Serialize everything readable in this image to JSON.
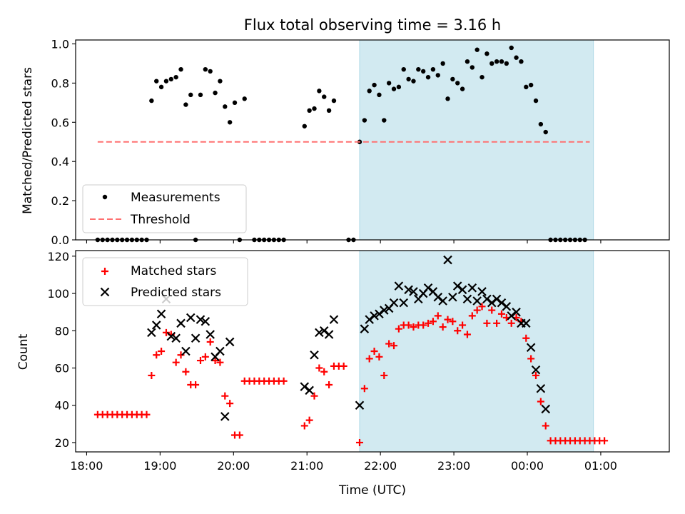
{
  "chart_data": [
    {
      "type": "scatter",
      "title": "Flux total observing time = 3.16 h",
      "xlabel": "",
      "ylabel": "Matched/Predicted stars",
      "xlim": [
        "17:51",
        "01:56"
      ],
      "ylim": [
        0,
        1.02
      ],
      "yticks": [
        "0.0",
        "0.2",
        "0.4",
        "0.6",
        "0.8",
        "1.0"
      ],
      "shaded_interval": [
        "21:43",
        "00:54"
      ],
      "shade_color": "#add8e6",
      "legend": {
        "position": "lower left",
        "entries": [
          "Measurements",
          "Threshold"
        ]
      },
      "series": [
        {
          "name": "Measurements",
          "color": "#000000",
          "marker": "dot",
          "points": [
            [
              "18:09",
              0
            ],
            [
              "18:13",
              0
            ],
            [
              "18:17",
              0
            ],
            [
              "18:21",
              0
            ],
            [
              "18:25",
              0
            ],
            [
              "18:29",
              0
            ],
            [
              "18:33",
              0
            ],
            [
              "18:37",
              0
            ],
            [
              "18:41",
              0
            ],
            [
              "18:45",
              0
            ],
            [
              "18:49",
              0
            ],
            [
              "18:53",
              0.71
            ],
            [
              "18:57",
              0.81
            ],
            [
              "19:01",
              0.78
            ],
            [
              "19:05",
              0.81
            ],
            [
              "19:09",
              0.82
            ],
            [
              "19:13",
              0.83
            ],
            [
              "19:17",
              0.87
            ],
            [
              "19:21",
              0.69
            ],
            [
              "19:25",
              0.74
            ],
            [
              "19:29",
              0
            ],
            [
              "19:33",
              0.74
            ],
            [
              "19:37",
              0.87
            ],
            [
              "19:41",
              0.86
            ],
            [
              "19:45",
              0.75
            ],
            [
              "19:49",
              0.81
            ],
            [
              "19:53",
              0.68
            ],
            [
              "19:57",
              0.6
            ],
            [
              "20:01",
              0.7
            ],
            [
              "20:05",
              0
            ],
            [
              "20:09",
              0.72
            ],
            [
              "20:17",
              0
            ],
            [
              "20:21",
              0
            ],
            [
              "20:25",
              0
            ],
            [
              "20:29",
              0
            ],
            [
              "20:33",
              0
            ],
            [
              "20:37",
              0
            ],
            [
              "20:41",
              0
            ],
            [
              "20:58",
              0.58
            ],
            [
              "21:02",
              0.66
            ],
            [
              "21:06",
              0.67
            ],
            [
              "21:10",
              0.76
            ],
            [
              "21:14",
              0.73
            ],
            [
              "21:18",
              0.66
            ],
            [
              "21:22",
              0.71
            ],
            [
              "21:34",
              0
            ],
            [
              "21:38",
              0
            ],
            [
              "21:43",
              0.5
            ],
            [
              "21:47",
              0.61
            ],
            [
              "21:51",
              0.76
            ],
            [
              "21:55",
              0.79
            ],
            [
              "21:59",
              0.74
            ],
            [
              "22:03",
              0.61
            ],
            [
              "22:07",
              0.8
            ],
            [
              "22:11",
              0.77
            ],
            [
              "22:15",
              0.78
            ],
            [
              "22:19",
              0.87
            ],
            [
              "22:23",
              0.82
            ],
            [
              "22:27",
              0.81
            ],
            [
              "22:31",
              0.87
            ],
            [
              "22:35",
              0.86
            ],
            [
              "22:39",
              0.83
            ],
            [
              "22:43",
              0.87
            ],
            [
              "22:47",
              0.84
            ],
            [
              "22:51",
              0.9
            ],
            [
              "22:55",
              0.72
            ],
            [
              "22:59",
              0.82
            ],
            [
              "23:03",
              0.8
            ],
            [
              "23:07",
              0.77
            ],
            [
              "23:11",
              0.91
            ],
            [
              "23:15",
              0.88
            ],
            [
              "23:19",
              0.97
            ],
            [
              "23:23",
              0.83
            ],
            [
              "23:27",
              0.95
            ],
            [
              "23:31",
              0.9
            ],
            [
              "23:35",
              0.91
            ],
            [
              "23:39",
              0.91
            ],
            [
              "23:43",
              0.9
            ],
            [
              "23:47",
              0.98
            ],
            [
              "23:51",
              0.93
            ],
            [
              "23:55",
              0.91
            ],
            [
              "23:59",
              0.78
            ],
            [
              "00:03",
              0.79
            ],
            [
              "00:07",
              0.71
            ],
            [
              "00:11",
              0.59
            ],
            [
              "00:15",
              0.55
            ],
            [
              "00:19",
              0
            ],
            [
              "00:23",
              0
            ],
            [
              "00:27",
              0
            ],
            [
              "00:31",
              0
            ],
            [
              "00:35",
              0
            ],
            [
              "00:39",
              0
            ],
            [
              "00:43",
              0
            ],
            [
              "00:47",
              0
            ]
          ]
        },
        {
          "name": "Threshold",
          "color": "#ff7070",
          "style": "dashed",
          "points": [
            [
              "18:09",
              0.5
            ],
            [
              "00:51",
              0.5
            ]
          ]
        }
      ]
    },
    {
      "type": "scatter",
      "title": "",
      "xlabel": "Time (UTC)",
      "ylabel": "Count",
      "xlim": [
        "17:51",
        "01:56"
      ],
      "ylim": [
        15,
        123
      ],
      "xticks": [
        "18:00",
        "19:00",
        "20:00",
        "21:00",
        "22:00",
        "23:00",
        "00:00",
        "01:00"
      ],
      "yticks": [
        "20",
        "40",
        "60",
        "80",
        "100",
        "120"
      ],
      "shaded_interval": [
        "21:43",
        "00:54"
      ],
      "shade_color": "#add8e6",
      "legend": {
        "position": "upper left",
        "entries": [
          "Matched stars",
          "Predicted stars"
        ]
      },
      "series": [
        {
          "name": "Matched stars",
          "color": "#ff0000",
          "marker": "plus",
          "points": [
            [
              "18:09",
              35
            ],
            [
              "18:13",
              35
            ],
            [
              "18:17",
              35
            ],
            [
              "18:21",
              35
            ],
            [
              "18:25",
              35
            ],
            [
              "18:29",
              35
            ],
            [
              "18:33",
              35
            ],
            [
              "18:37",
              35
            ],
            [
              "18:41",
              35
            ],
            [
              "18:45",
              35
            ],
            [
              "18:49",
              35
            ],
            [
              "18:53",
              56
            ],
            [
              "18:57",
              67
            ],
            [
              "19:01",
              69
            ],
            [
              "19:05",
              79
            ],
            [
              "19:09",
              78
            ],
            [
              "19:13",
              63
            ],
            [
              "19:17",
              67
            ],
            [
              "19:21",
              58
            ],
            [
              "19:25",
              51
            ],
            [
              "19:29",
              51
            ],
            [
              "19:33",
              64
            ],
            [
              "19:37",
              66
            ],
            [
              "19:41",
              74
            ],
            [
              "19:45",
              64
            ],
            [
              "19:49",
              63
            ],
            [
              "19:53",
              45
            ],
            [
              "19:57",
              41
            ],
            [
              "20:01",
              24
            ],
            [
              "20:05",
              24
            ],
            [
              "20:09",
              53
            ],
            [
              "20:13",
              53
            ],
            [
              "20:17",
              53
            ],
            [
              "20:21",
              53
            ],
            [
              "20:25",
              53
            ],
            [
              "20:29",
              53
            ],
            [
              "20:33",
              53
            ],
            [
              "20:37",
              53
            ],
            [
              "20:41",
              53
            ],
            [
              "20:58",
              29
            ],
            [
              "21:02",
              32
            ],
            [
              "21:06",
              45
            ],
            [
              "21:10",
              60
            ],
            [
              "21:14",
              58
            ],
            [
              "21:18",
              51
            ],
            [
              "21:22",
              61
            ],
            [
              "21:26",
              61
            ],
            [
              "21:30",
              61
            ],
            [
              "21:43",
              20
            ],
            [
              "21:47",
              49
            ],
            [
              "21:51",
              65
            ],
            [
              "21:55",
              69
            ],
            [
              "21:59",
              66
            ],
            [
              "22:03",
              56
            ],
            [
              "22:07",
              73
            ],
            [
              "22:11",
              72
            ],
            [
              "22:15",
              81
            ],
            [
              "22:19",
              83
            ],
            [
              "22:23",
              83
            ],
            [
              "22:27",
              82
            ],
            [
              "22:31",
              83
            ],
            [
              "22:35",
              83
            ],
            [
              "22:39",
              84
            ],
            [
              "22:43",
              85
            ],
            [
              "22:47",
              88
            ],
            [
              "22:51",
              82
            ],
            [
              "22:55",
              86
            ],
            [
              "22:59",
              85
            ],
            [
              "23:03",
              80
            ],
            [
              "23:07",
              83
            ],
            [
              "23:11",
              78
            ],
            [
              "23:15",
              88
            ],
            [
              "23:19",
              91
            ],
            [
              "23:23",
              93
            ],
            [
              "23:27",
              84
            ],
            [
              "23:31",
              91
            ],
            [
              "23:35",
              84
            ],
            [
              "23:39",
              89
            ],
            [
              "23:43",
              87
            ],
            [
              "23:47",
              84
            ],
            [
              "23:51",
              87
            ],
            [
              "23:55",
              85
            ],
            [
              "23:59",
              76
            ],
            [
              "00:03",
              65
            ],
            [
              "00:07",
              56
            ],
            [
              "00:11",
              42
            ],
            [
              "00:15",
              29
            ],
            [
              "00:19",
              21
            ],
            [
              "00:23",
              21
            ],
            [
              "00:27",
              21
            ],
            [
              "00:31",
              21
            ],
            [
              "00:35",
              21
            ],
            [
              "00:39",
              21
            ],
            [
              "00:43",
              21
            ],
            [
              "00:47",
              21
            ],
            [
              "00:51",
              21
            ],
            [
              "00:55",
              21
            ],
            [
              "00:59",
              21
            ],
            [
              "01:03",
              21
            ]
          ]
        },
        {
          "name": "Predicted stars",
          "color": "#000000",
          "marker": "x",
          "points": [
            [
              "18:53",
              79
            ],
            [
              "18:57",
              83
            ],
            [
              "19:01",
              89
            ],
            [
              "19:05",
              97
            ],
            [
              "19:09",
              77
            ],
            [
              "19:13",
              76
            ],
            [
              "19:17",
              84
            ],
            [
              "19:21",
              69
            ],
            [
              "19:25",
              87
            ],
            [
              "19:29",
              76
            ],
            [
              "19:33",
              86
            ],
            [
              "19:37",
              85
            ],
            [
              "19:41",
              78
            ],
            [
              "19:45",
              66
            ],
            [
              "19:49",
              69
            ],
            [
              "19:53",
              34
            ],
            [
              "19:57",
              74
            ],
            [
              "20:58",
              50
            ],
            [
              "21:02",
              48
            ],
            [
              "21:06",
              67
            ],
            [
              "21:10",
              79
            ],
            [
              "21:14",
              80
            ],
            [
              "21:18",
              78
            ],
            [
              "21:22",
              86
            ],
            [
              "21:43",
              40
            ],
            [
              "21:47",
              81
            ],
            [
              "21:51",
              86
            ],
            [
              "21:55",
              88
            ],
            [
              "21:59",
              89
            ],
            [
              "22:03",
              91
            ],
            [
              "22:07",
              92
            ],
            [
              "22:11",
              95
            ],
            [
              "22:15",
              104
            ],
            [
              "22:19",
              95
            ],
            [
              "22:23",
              102
            ],
            [
              "22:27",
              101
            ],
            [
              "22:31",
              97
            ],
            [
              "22:35",
              100
            ],
            [
              "22:39",
              103
            ],
            [
              "22:43",
              101
            ],
            [
              "22:47",
              98
            ],
            [
              "22:51",
              96
            ],
            [
              "22:55",
              118
            ],
            [
              "22:59",
              98
            ],
            [
              "23:03",
              104
            ],
            [
              "23:07",
              102
            ],
            [
              "23:11",
              97
            ],
            [
              "23:15",
              103
            ],
            [
              "23:19",
              96
            ],
            [
              "23:23",
              101
            ],
            [
              "23:27",
              97
            ],
            [
              "23:31",
              95
            ],
            [
              "23:35",
              97
            ],
            [
              "23:39",
              95
            ],
            [
              "23:43",
              93
            ],
            [
              "23:47",
              88
            ],
            [
              "23:51",
              90
            ],
            [
              "23:55",
              84
            ],
            [
              "23:59",
              84
            ],
            [
              "00:03",
              71
            ],
            [
              "00:07",
              59
            ],
            [
              "00:11",
              49
            ],
            [
              "00:15",
              38
            ]
          ]
        }
      ]
    }
  ]
}
